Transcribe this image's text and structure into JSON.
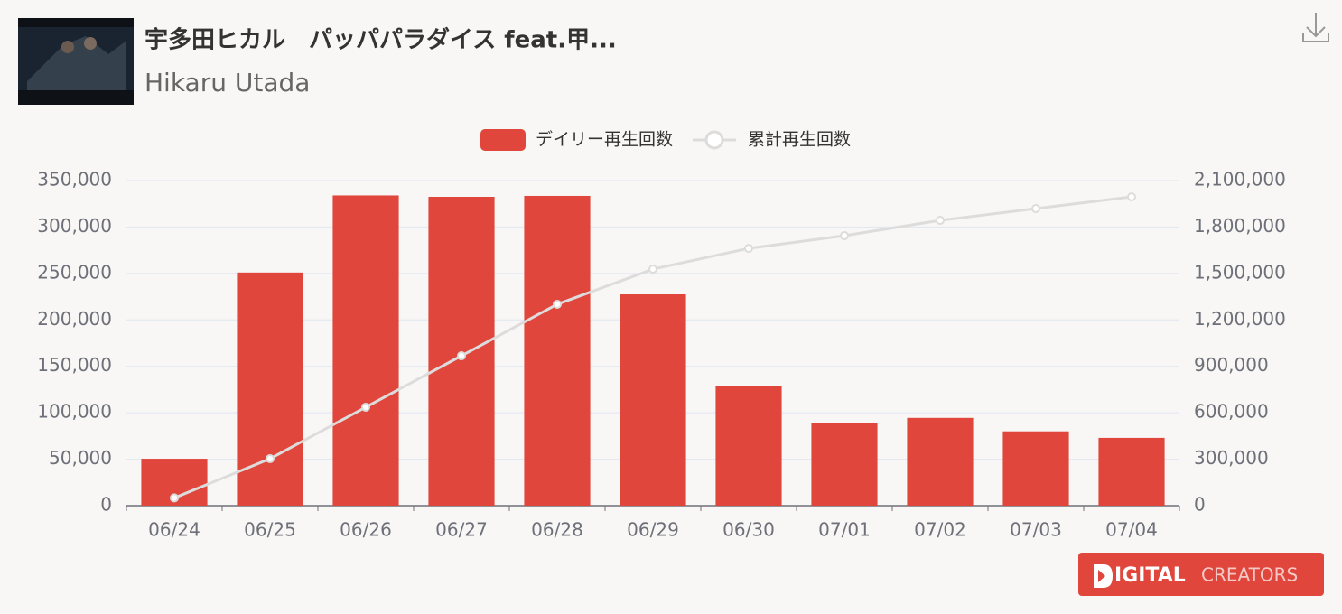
{
  "header": {
    "title": "宇多田ヒカル　パッパパラダイス feat.甲...",
    "artist": "Hikaru Utada"
  },
  "chart_data": {
    "type": "bar-line",
    "categories": [
      "06/24",
      "06/25",
      "06/26",
      "06/27",
      "06/28",
      "06/29",
      "06/30",
      "07/01",
      "07/02",
      "07/03",
      "07/04"
    ],
    "series": [
      {
        "name": "デイリー再生回数",
        "color": "#e0463b",
        "type": "bar",
        "axis": "y",
        "values": [
          50500,
          251000,
          334000,
          332500,
          333500,
          227500,
          129000,
          88500,
          94500,
          80000,
          73000
        ]
      },
      {
        "name": "累計再生回数",
        "color": "#dcdcdc",
        "type": "line",
        "axis": "y2",
        "values": [
          50000,
          303000,
          636000,
          968000,
          1301000,
          1528000,
          1662000,
          1744000,
          1843000,
          1919000,
          1995000
        ]
      }
    ],
    "ylim": [
      0,
      350000
    ],
    "yticks": [
      0,
      {
        "value": 50000,
        "label": "50,000"
      },
      {
        "value": 100000,
        "label": "100,000"
      },
      {
        "value": 150000,
        "label": "150,000"
      },
      {
        "value": 200000,
        "label": "200,000"
      },
      {
        "value": 250000,
        "label": "250,000"
      },
      {
        "value": 300000,
        "label": "300,000"
      },
      {
        "value": 350000,
        "label": "350,000"
      }
    ],
    "y2lim": [
      0,
      2100000
    ],
    "y2ticks": [
      0,
      {
        "value": 300000,
        "label": "300,000"
      },
      {
        "value": 600000,
        "label": "600,000"
      },
      {
        "value": 900000,
        "label": "900,000"
      },
      {
        "value": 1200000,
        "label": "1,200,000"
      },
      {
        "value": 1500000,
        "label": "1,500,000"
      },
      {
        "value": 1800000,
        "label": "1,800,000"
      },
      {
        "value": 2100000,
        "label": "2,100,000"
      }
    ],
    "grid": true,
    "legend": "top"
  },
  "logo": {
    "brand": "IGITAL",
    "sub": "CREATORS"
  }
}
